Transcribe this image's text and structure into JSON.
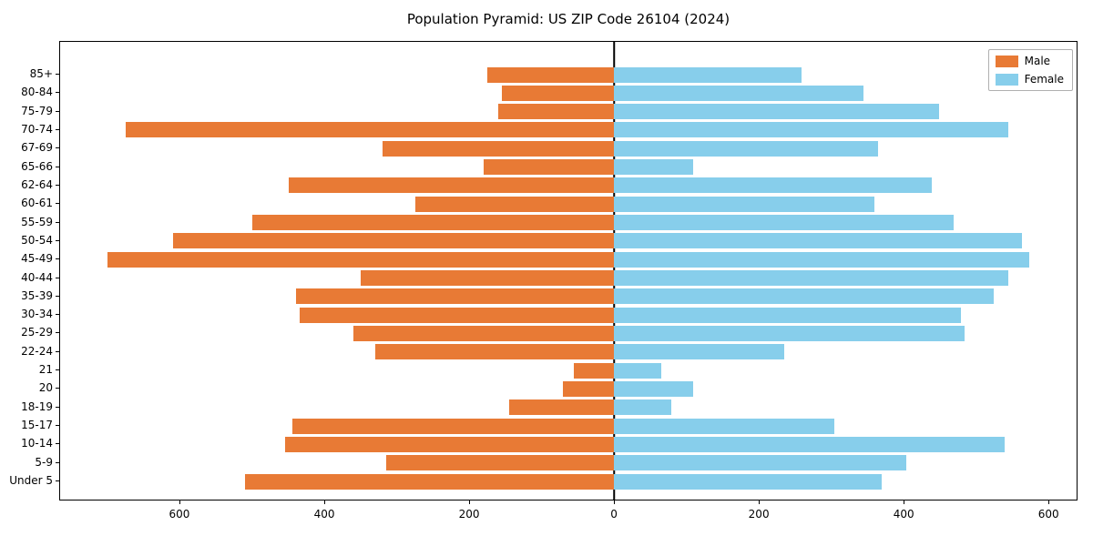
{
  "title": "Population Pyramid: US ZIP Code 26104 (2024)",
  "chart_data": {
    "type": "bar",
    "subtype": "population-pyramid",
    "title": "Population Pyramid: US ZIP Code 26104 (2024)",
    "categories": [
      "85+",
      "80-84",
      "75-79",
      "70-74",
      "67-69",
      "65-66",
      "62-64",
      "60-61",
      "55-59",
      "50-54",
      "45-49",
      "40-44",
      "35-39",
      "30-34",
      "25-29",
      "22-24",
      "21",
      "20",
      "18-19",
      "15-17",
      "10-14",
      "5-9",
      "Under 5"
    ],
    "series": [
      {
        "name": "Male",
        "side": "left",
        "color": "#E87A35",
        "values": [
          175,
          155,
          160,
          675,
          320,
          180,
          450,
          275,
          500,
          610,
          700,
          350,
          440,
          435,
          360,
          330,
          55,
          70,
          145,
          445,
          455,
          315,
          510
        ]
      },
      {
        "name": "Female",
        "side": "right",
        "color": "#87CEEB",
        "values": [
          260,
          345,
          450,
          545,
          365,
          110,
          440,
          360,
          470,
          565,
          575,
          545,
          525,
          480,
          485,
          235,
          65,
          110,
          80,
          305,
          540,
          405,
          370
        ]
      }
    ],
    "xlabel": "",
    "ylabel": "",
    "xlim": [
      -766,
      640
    ],
    "x_ticks": [
      -600,
      -400,
      -200,
      0,
      200,
      400,
      600
    ],
    "x_tick_labels": [
      "600",
      "400",
      "200",
      "0",
      "200",
      "400",
      "600"
    ],
    "grid": false,
    "zero_line": true,
    "legend": {
      "position": "upper right",
      "entries": [
        "Male",
        "Female"
      ]
    }
  }
}
